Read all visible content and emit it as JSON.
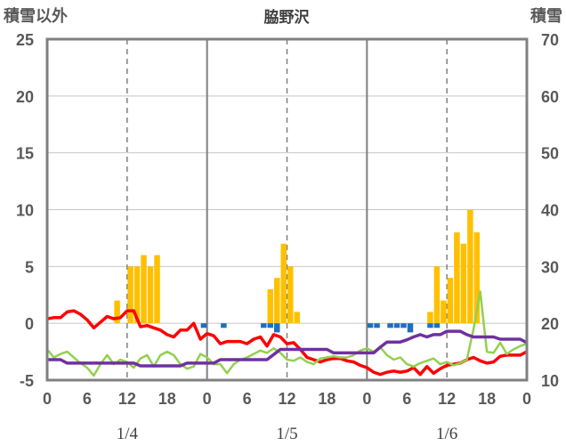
{
  "chart_data": {
    "type": "bar",
    "title": "脇野沢",
    "left_axis_label": "積雪以外",
    "right_axis_label": "積雪",
    "left_ylim": [
      -5,
      25
    ],
    "left_ticks": [
      "25",
      "20",
      "15",
      "10",
      "5",
      "0",
      "-5"
    ],
    "right_ylim": [
      10,
      70
    ],
    "right_ticks": [
      "70",
      "60",
      "50",
      "40",
      "30",
      "20",
      "10"
    ],
    "x_range_hours": [
      0,
      72
    ],
    "x_tick_labels": [
      "0",
      "6",
      "12",
      "18",
      "0",
      "6",
      "12",
      "18",
      "0",
      "6",
      "12",
      "18",
      "0"
    ],
    "date_labels": [
      {
        "label": "1/4",
        "hour": 12
      },
      {
        "label": "1/5",
        "hour": 36
      },
      {
        "label": "1/6",
        "hour": 60
      }
    ],
    "day_boundaries_hours": [
      24,
      48
    ],
    "noon_lines_hours": [
      12,
      36,
      60
    ],
    "series": [
      {
        "kind": "bar",
        "color": "#ffc000",
        "hours": [
          10,
          12,
          13,
          14,
          15,
          16,
          33,
          34,
          35,
          36,
          37,
          57,
          58,
          59,
          60,
          61,
          62,
          63,
          64,
          65
        ],
        "values": [
          2,
          5,
          5,
          6,
          5,
          6,
          3,
          4,
          7,
          5,
          1,
          1,
          5,
          2,
          4,
          8,
          7,
          10,
          8,
          0
        ]
      },
      {
        "kind": "bar",
        "color": "#1f6fbd",
        "hours": [
          23,
          26,
          32,
          33,
          34,
          48,
          49,
          51,
          52,
          53,
          54,
          57,
          58
        ],
        "values": [
          -0.4,
          -0.4,
          -0.4,
          -0.4,
          -0.8,
          -0.4,
          -0.4,
          -0.4,
          -0.4,
          -0.4,
          -0.8,
          -0.4,
          -0.4
        ]
      },
      {
        "kind": "line",
        "color": "#ff0000",
        "hours": [
          0,
          1,
          2,
          3,
          4,
          5,
          6,
          7,
          8,
          9,
          10,
          11,
          12,
          13,
          14,
          15,
          16,
          17,
          18,
          19,
          20,
          21,
          22,
          23,
          24,
          25,
          26,
          27,
          28,
          29,
          30,
          31,
          32,
          33,
          34,
          35,
          36,
          37,
          38,
          39,
          40,
          41,
          42,
          43,
          44,
          45,
          46,
          47,
          48,
          49,
          50,
          51,
          52,
          53,
          54,
          55,
          56,
          57,
          58,
          59,
          60,
          61,
          62,
          63,
          64,
          65,
          66,
          67,
          68,
          69,
          70,
          71,
          72
        ],
        "values": [
          0.4,
          0.5,
          0.5,
          1.0,
          1.1,
          0.8,
          0.3,
          -0.4,
          0.1,
          0.6,
          0.4,
          0.5,
          1.1,
          1.1,
          -0.3,
          -0.2,
          -0.4,
          -0.6,
          -1.0,
          -1.2,
          -0.6,
          -0.6,
          0.0,
          -1.4,
          -0.9,
          -1.1,
          -1.8,
          -1.6,
          -1.6,
          -1.6,
          -1.8,
          -1.4,
          -1.2,
          -2.0,
          -1.0,
          -1.2,
          -1.8,
          -1.7,
          -2.3,
          -3.0,
          -3.2,
          -3.4,
          -3.2,
          -3.1,
          -3.1,
          -3.3,
          -3.4,
          -3.7,
          -3.9,
          -4.3,
          -4.5,
          -4.3,
          -4.2,
          -4.3,
          -4.2,
          -3.9,
          -4.5,
          -3.8,
          -4.4,
          -4.0,
          -3.7,
          -3.6,
          -3.5,
          -3.2,
          -3.0,
          -3.3,
          -3.5,
          -3.4,
          -2.9,
          -2.8,
          -2.8,
          -2.8,
          -2.5
        ]
      },
      {
        "kind": "line",
        "color": "#92d050",
        "hours": [
          0,
          1,
          2,
          3,
          4,
          5,
          6,
          7,
          8,
          9,
          10,
          11,
          12,
          13,
          14,
          15,
          16,
          17,
          18,
          19,
          20,
          21,
          22,
          23,
          24,
          25,
          26,
          27,
          28,
          29,
          30,
          31,
          32,
          33,
          34,
          35,
          36,
          37,
          38,
          39,
          40,
          41,
          42,
          43,
          44,
          45,
          46,
          47,
          48,
          49,
          50,
          51,
          52,
          53,
          54,
          55,
          56,
          57,
          58,
          59,
          60,
          61,
          62,
          63,
          64,
          65,
          66,
          67,
          68,
          69,
          70,
          71,
          72
        ],
        "values": [
          -2.3,
          -3.0,
          -2.7,
          -2.5,
          -3.0,
          -3.5,
          -3.9,
          -4.6,
          -3.6,
          -2.8,
          -3.6,
          -3.2,
          -3.4,
          -3.9,
          -3.1,
          -2.8,
          -3.8,
          -2.8,
          -2.5,
          -2.8,
          -3.6,
          -4.0,
          -3.8,
          -2.7,
          -3.0,
          -3.6,
          -3.6,
          -4.4,
          -3.6,
          -3.2,
          -3.0,
          -2.7,
          -2.4,
          -2.6,
          -2.2,
          -2.6,
          -3.2,
          -3.3,
          -3.0,
          -3.4,
          -3.6,
          -3.1,
          -3.0,
          -2.9,
          -3.0,
          -3.0,
          -2.8,
          -2.4,
          -2.2,
          -2.5,
          -2.1,
          -2.8,
          -3.2,
          -3.0,
          -3.6,
          -3.8,
          -3.5,
          -3.3,
          -3.1,
          -3.6,
          -3.4,
          -3.7,
          -3.5,
          -3.2,
          -0.5,
          2.8,
          -2.5,
          -2.6,
          -1.7,
          -2.7,
          -2.3,
          -2.0,
          -1.8
        ]
      },
      {
        "kind": "line",
        "color": "#7030a0",
        "hours": [
          0,
          1,
          2,
          3,
          4,
          5,
          6,
          7,
          8,
          9,
          10,
          11,
          12,
          13,
          14,
          15,
          16,
          17,
          18,
          19,
          20,
          21,
          22,
          23,
          24,
          25,
          26,
          27,
          28,
          29,
          30,
          31,
          32,
          33,
          34,
          35,
          36,
          37,
          38,
          39,
          40,
          41,
          42,
          43,
          44,
          45,
          46,
          47,
          48,
          49,
          50,
          51,
          52,
          53,
          54,
          55,
          56,
          57,
          58,
          59,
          60,
          61,
          62,
          63,
          64,
          65,
          66,
          67,
          68,
          69,
          70,
          71,
          72
        ],
        "values": [
          13.6,
          13.6,
          13.6,
          13.0,
          13.0,
          13.0,
          13.0,
          13.0,
          13.0,
          13.0,
          13.0,
          13.0,
          13.0,
          13.0,
          12.5,
          12.5,
          12.5,
          12.5,
          12.5,
          12.5,
          12.5,
          13.0,
          13.0,
          13.0,
          13.0,
          13.0,
          13.6,
          13.6,
          13.6,
          13.6,
          13.6,
          13.6,
          13.6,
          13.6,
          14.5,
          15.4,
          15.4,
          15.4,
          15.4,
          15.4,
          15.4,
          15.4,
          15.4,
          14.8,
          14.8,
          14.8,
          14.8,
          14.8,
          14.8,
          14.8,
          15.8,
          16.7,
          16.7,
          16.7,
          17.1,
          17.6,
          18.0,
          17.6,
          18.0,
          18.0,
          18.6,
          18.6,
          18.6,
          18.0,
          17.6,
          17.6,
          17.6,
          17.6,
          17.2,
          17.2,
          17.2,
          17.2,
          16.6
        ]
      }
    ],
    "notes": "Bars and red/green lines use the left axis; the purple line uses the right axis (積雪)."
  }
}
